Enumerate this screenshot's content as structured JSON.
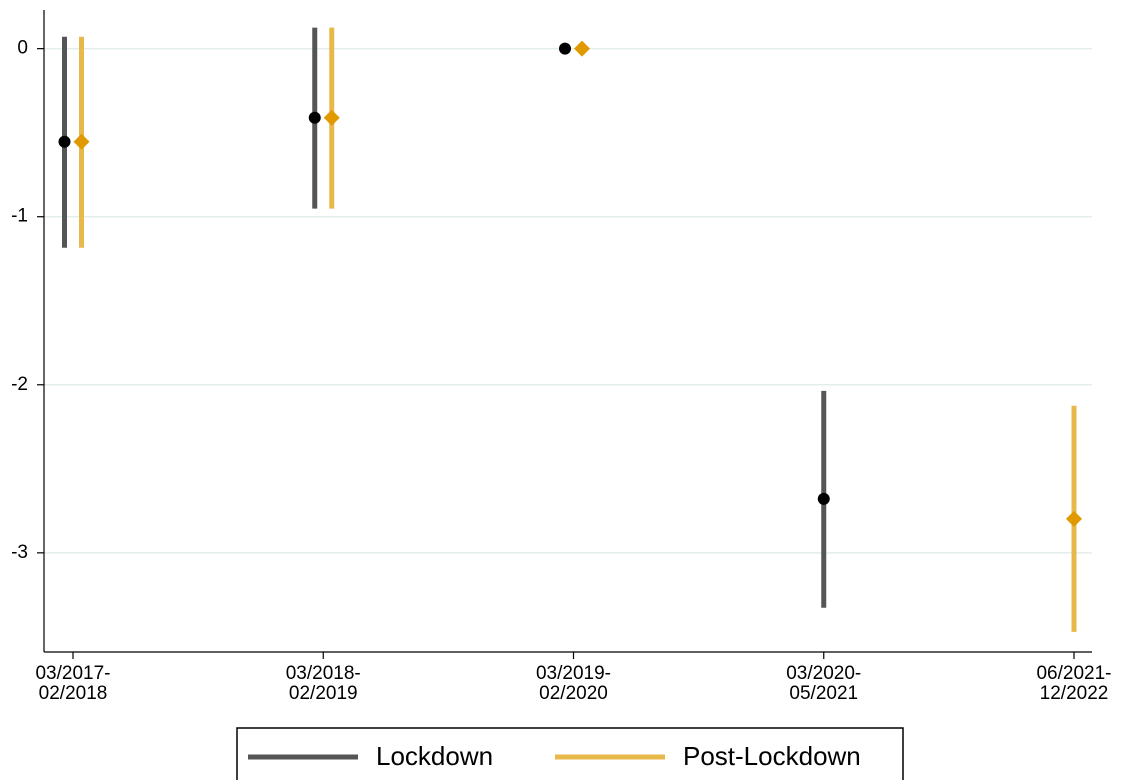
{
  "chart_data": {
    "type": "coefplot",
    "categories": [
      [
        "03/2017-",
        "02/2018"
      ],
      [
        "03/2018-",
        "02/2019"
      ],
      [
        "03/2019-",
        "02/2020"
      ],
      [
        "03/2020-",
        "05/2021"
      ],
      [
        "06/2021-",
        "12/2022"
      ]
    ],
    "series": [
      {
        "name": "Lockdown",
        "color": "#555555",
        "marker_color": "#000000",
        "marker": "circle",
        "values": [
          -0.554,
          -0.411,
          0,
          -2.679,
          null
        ],
        "lower": [
          -1.185,
          -0.952,
          null,
          -3.327,
          null
        ],
        "upper": [
          0.071,
          0.125,
          null,
          -2.036,
          null
        ]
      },
      {
        "name": "Post-Lockdown",
        "color": "#e8b84a",
        "marker_color": "#e09a00",
        "marker": "diamond",
        "values": [
          -0.554,
          -0.411,
          0,
          null,
          -2.798
        ],
        "lower": [
          -1.185,
          -0.952,
          null,
          null,
          -3.47
        ],
        "upper": [
          0.071,
          0.125,
          null,
          null,
          -2.125
        ]
      }
    ],
    "ylim": [
      -3.59,
      0.23
    ],
    "yticks": [
      0,
      -1,
      -2,
      -3
    ],
    "grid": true,
    "legend": "bottom"
  }
}
